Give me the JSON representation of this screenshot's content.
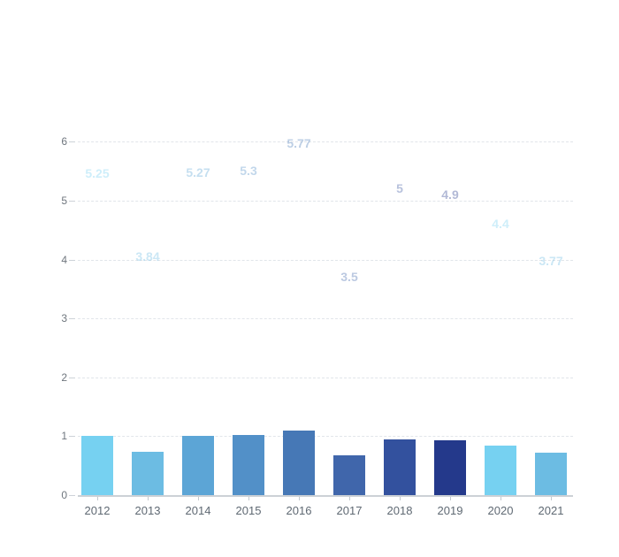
{
  "chart_data": {
    "type": "bar",
    "categories": [
      "2012",
      "2013",
      "2014",
      "2015",
      "2016",
      "2017",
      "2018",
      "2019",
      "2020",
      "2021"
    ],
    "series": [
      {
        "name": "bars",
        "type": "bar",
        "values": [
          1.0,
          0.73,
          1.01,
          1.02,
          1.1,
          0.67,
          0.95,
          0.93,
          0.84,
          0.72
        ],
        "colors": [
          "#76d1f1",
          "#6cbce3",
          "#5ca5d6",
          "#5290c8",
          "#4678b6",
          "#4066ab",
          "#33519e",
          "#24398b",
          "#76d1f1",
          "#6cbce3"
        ]
      },
      {
        "name": "value-labels",
        "type": "point-labels",
        "values": [
          5.25,
          3.84,
          5.27,
          5.3,
          5.77,
          3.5,
          5,
          4.9,
          4.4,
          3.77
        ],
        "display": [
          "5.25",
          "3.84",
          "5.27",
          "5.3",
          "5.77",
          "3.5",
          "5",
          "4.9",
          "4.4",
          "3.77"
        ],
        "label_opacity": 0.35
      }
    ],
    "y_axis": {
      "ticks": [
        "0",
        "1",
        "2",
        "3",
        "4",
        "5",
        "6"
      ],
      "min": 0,
      "max": 6
    },
    "grid": {
      "horizontal": true,
      "style": "dashed",
      "color": "#e1e5ea"
    },
    "axis_color": "#ccd1d6",
    "x_label_color": "#5f6973",
    "y_label_color": "#6f767e",
    "legend": null,
    "title": null
  }
}
